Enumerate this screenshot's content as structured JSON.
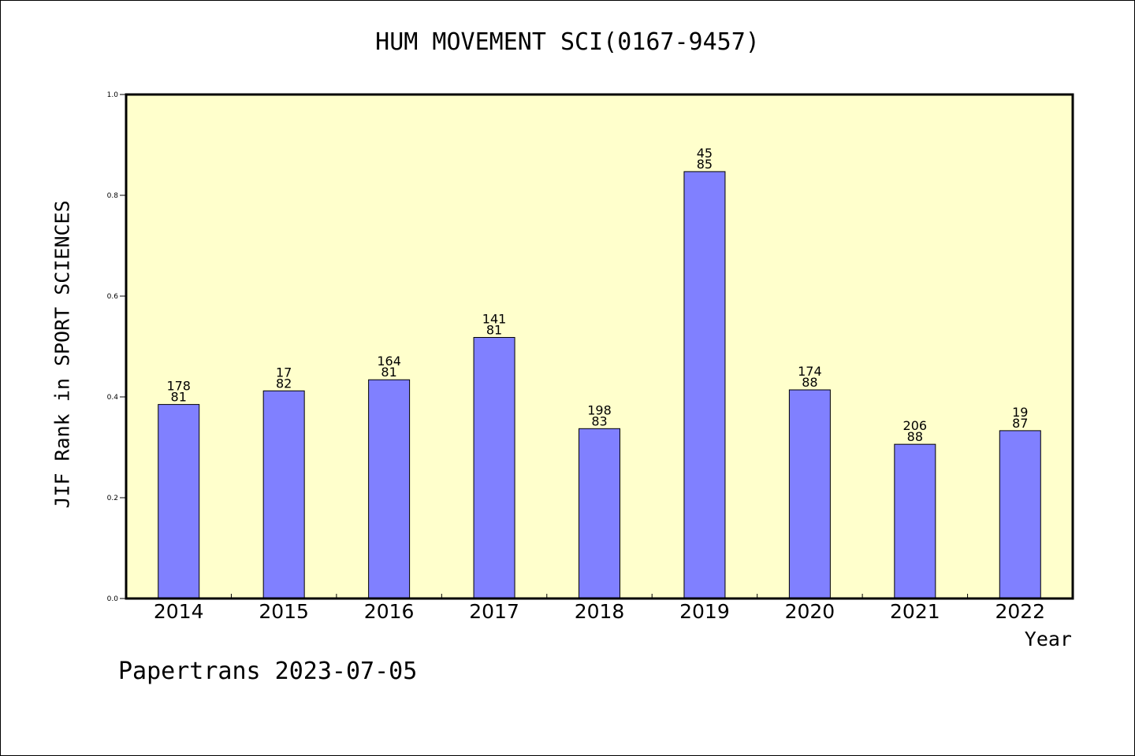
{
  "chart_data": {
    "type": "bar",
    "title": "HUM MOVEMENT SCI(0167-9457)",
    "xlabel": "Year",
    "ylabel": "JIF Rank in SPORT SCIENCES",
    "ylim": [
      0,
      1.0
    ],
    "yticks": [
      "0.0",
      "0.2",
      "0.4",
      "0.6",
      "0.8",
      "1.0"
    ],
    "categories": [
      "2014",
      "2015",
      "2016",
      "2017",
      "2018",
      "2019",
      "2020",
      "2021",
      "2022"
    ],
    "values": [
      0.385,
      0.412,
      0.434,
      0.518,
      0.337,
      0.847,
      0.414,
      0.306,
      0.333
    ],
    "labels_top": [
      "178",
      "17",
      "164",
      "141",
      "198",
      "45",
      "174",
      "206",
      "19"
    ],
    "labels_bottom": [
      "81",
      "82",
      "81",
      "81",
      "83",
      "85",
      "88",
      "88",
      "87"
    ],
    "grid": false,
    "colors": {
      "plot_bg": "#ffffcc",
      "bar": "#8080ff",
      "bar_stroke": "#000000"
    }
  },
  "footer": "Papertrans 2023-07-05"
}
